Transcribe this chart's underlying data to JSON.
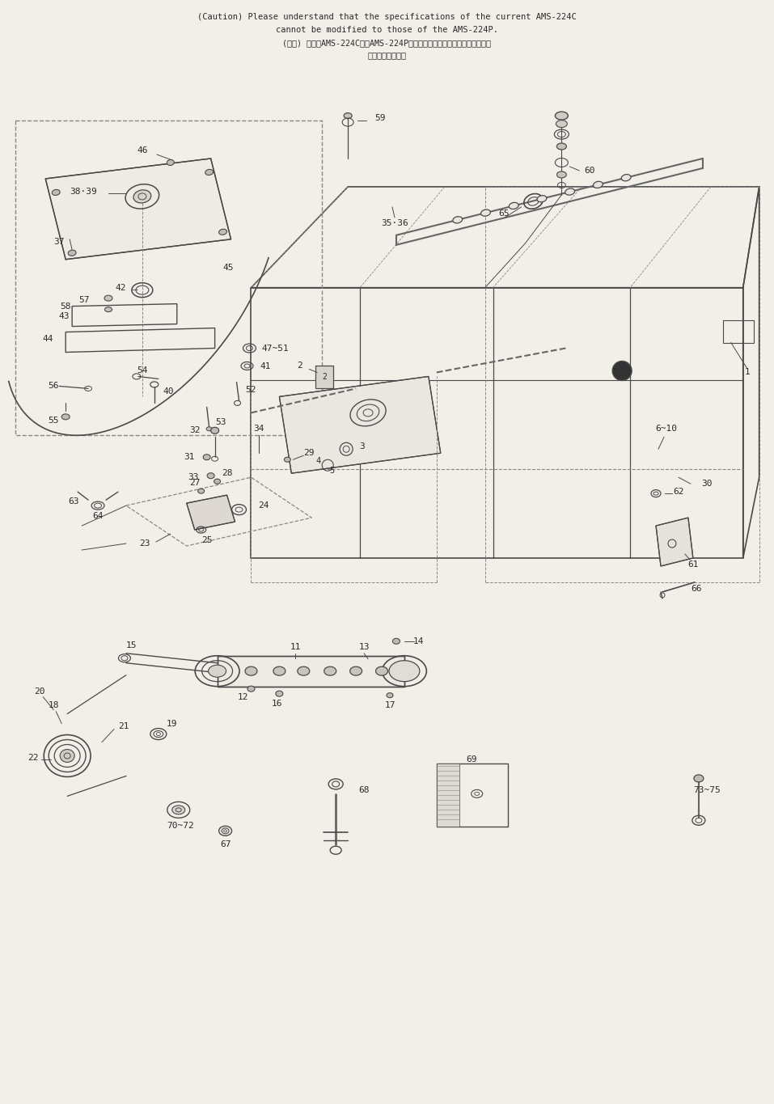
{
  "title_line1": "(Caution) Please understand that the specifications of the current AMS-224C",
  "title_line2": "cannot be modified to those of the AMS-224P.",
  "title_line3": "(注意) 現行のAMS-224CからAMS-224Pへ改次による仕様変更はできません。",
  "title_line4": "ご了承ください。",
  "bg_color": "#f2efe9",
  "lc": "#4a4a4a",
  "tc": "#2a2a2a"
}
